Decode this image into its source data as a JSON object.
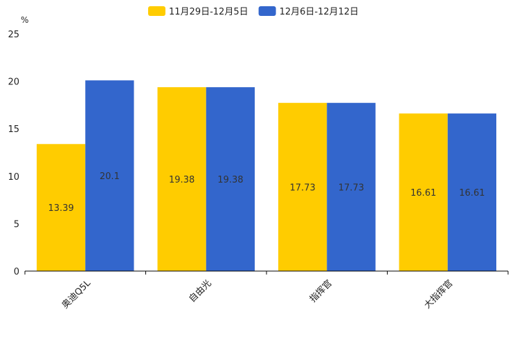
{
  "chart_data": {
    "type": "bar",
    "title": "",
    "ylabel": "%",
    "xlabel": "",
    "ylim": [
      0,
      25
    ],
    "yticks": [
      0,
      5,
      10,
      15,
      20,
      25
    ],
    "categories": [
      "奥迪Q5L",
      "自由光",
      "指挥官",
      "大指挥官"
    ],
    "series": [
      {
        "name": "11月29日-12月5日",
        "color": "#FFCC00",
        "values": [
          13.39,
          19.38,
          17.73,
          16.61
        ]
      },
      {
        "name": "12月6日-12月12日",
        "color": "#3366CC",
        "values": [
          20.1,
          19.38,
          17.73,
          16.61
        ]
      }
    ],
    "legend_position": "top-center",
    "grid": false
  }
}
